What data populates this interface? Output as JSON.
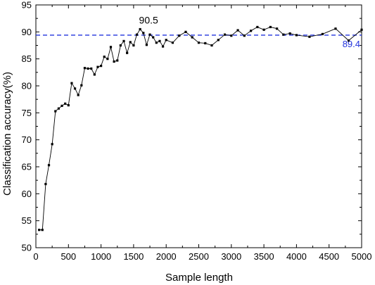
{
  "chart_data": {
    "type": "line",
    "xlabel": "Sample length",
    "ylabel": "Classification accuracy(%)",
    "xlim": [
      0,
      5000
    ],
    "ylim": [
      50,
      95
    ],
    "x_ticks": [
      "0",
      "500",
      "1000",
      "1500",
      "2000",
      "2500",
      "3000",
      "3500",
      "4000",
      "4500",
      "5000"
    ],
    "y_ticks": [
      "50",
      "55",
      "60",
      "65",
      "70",
      "75",
      "80",
      "85",
      "90",
      "95"
    ],
    "grid": false,
    "series": [
      {
        "color": "#000000",
        "marker": "square",
        "x": [
          50,
          100,
          150,
          200,
          250,
          300,
          350,
          400,
          450,
          500,
          550,
          600,
          650,
          700,
          750,
          800,
          850,
          900,
          950,
          1000,
          1050,
          1100,
          1150,
          1200,
          1250,
          1300,
          1350,
          1400,
          1450,
          1500,
          1550,
          1600,
          1650,
          1700,
          1750,
          1800,
          1850,
          1900,
          1950,
          2000,
          2100,
          2200,
          2300,
          2400,
          2500,
          2600,
          2700,
          2800,
          2900,
          3000,
          3100,
          3200,
          3300,
          3400,
          3500,
          3600,
          3700,
          3800,
          3900,
          4000,
          4200,
          4400,
          4600,
          4800,
          5000
        ],
        "values": [
          53.3,
          53.3,
          61.8,
          65.3,
          69.2,
          75.3,
          75.8,
          76.3,
          76.7,
          76.4,
          80.5,
          79.5,
          78.3,
          80.1,
          83.3,
          83.2,
          83.2,
          82.1,
          83.5,
          83.7,
          85.4,
          85.0,
          87.2,
          84.5,
          84.7,
          87.5,
          88.3,
          86.1,
          88.1,
          87.5,
          89.5,
          90.5,
          89.8,
          87.6,
          89.5,
          89.0,
          88.0,
          88.3,
          87.3,
          88.5,
          88.0,
          89.3,
          90.0,
          89.0,
          88.0,
          87.9,
          87.5,
          88.5,
          89.5,
          89.3,
          90.3,
          89.3,
          90.2,
          90.9,
          90.4,
          90.9,
          90.6,
          89.5,
          89.7,
          89.4,
          89.1,
          89.6,
          90.6,
          88.4,
          90.4
        ]
      }
    ],
    "reference_line": {
      "value": 89.4,
      "label": "89.4",
      "color": "#2233dd",
      "style": "dashed"
    },
    "peak_annotation": {
      "x": 1600,
      "value": 90.5,
      "label": "90.5"
    }
  }
}
